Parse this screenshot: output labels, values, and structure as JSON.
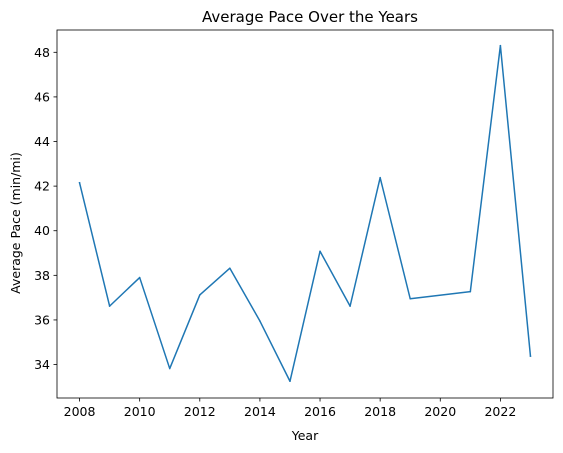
{
  "chart_data": {
    "type": "line",
    "title": "Average Pace Over the Years",
    "xlabel": "Year",
    "ylabel": "Average Pace (min/mi)",
    "xlim": [
      2007.25,
      2023.75
    ],
    "ylim": [
      32.5,
      49.0
    ],
    "xticks": [
      2008,
      2010,
      2012,
      2014,
      2016,
      2018,
      2020,
      2022
    ],
    "yticks": [
      34,
      36,
      38,
      40,
      42,
      44,
      46,
      48
    ],
    "grid": false,
    "legend": "none",
    "series": [
      {
        "color": "#1f77b4",
        "x": [
          2008,
          2009,
          2010,
          2011,
          2012,
          2013,
          2014,
          2015,
          2016,
          2017,
          2018,
          2019,
          2021,
          2022,
          2023
        ],
        "values": [
          42.15,
          36.62,
          37.9,
          33.82,
          37.12,
          38.32,
          35.95,
          33.25,
          39.08,
          36.62,
          42.38,
          36.95,
          37.27,
          48.3,
          34.38
        ]
      }
    ]
  }
}
